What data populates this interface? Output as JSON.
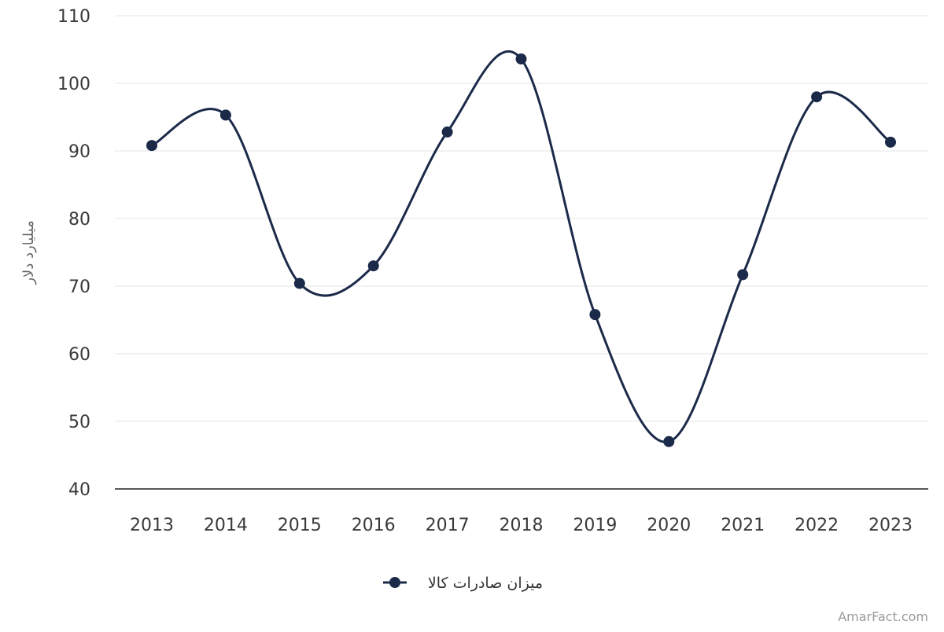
{
  "chart_data": {
    "type": "line",
    "smooth": true,
    "x": [
      "2013",
      "2014",
      "2015",
      "2016",
      "2017",
      "2018",
      "2019",
      "2020",
      "2021",
      "2022",
      "2023"
    ],
    "series": [
      {
        "name": "میزان صادرات کالا",
        "values": [
          90.8,
          95.3,
          70.4,
          73.0,
          92.8,
          103.6,
          65.8,
          47.0,
          71.7,
          98.0,
          91.3
        ],
        "color": "#1c2a4a"
      }
    ],
    "ylabel": "میلیارد دلار",
    "xlabel": "",
    "ylim": [
      40,
      110
    ],
    "yticks": [
      40,
      50,
      60,
      70,
      80,
      90,
      100,
      110
    ],
    "grid": true,
    "legend_position": "bottom-center",
    "colors": {
      "line": "#1c2a4a",
      "grid": "#e6e6e6",
      "axis": "#222222"
    }
  },
  "watermark": "AmarFact.com"
}
